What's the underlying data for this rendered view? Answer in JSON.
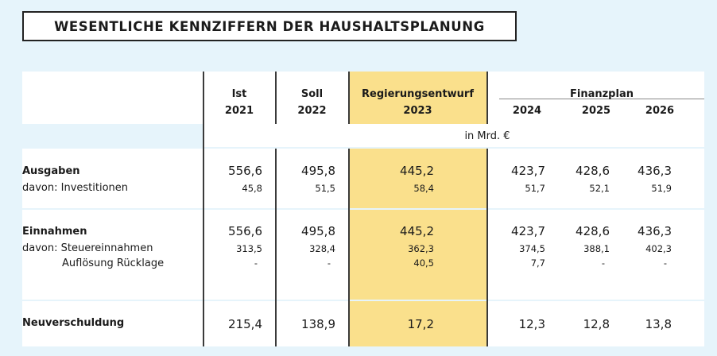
{
  "title": "WESENTLICHE KENNZIFFERN DER HAUSHALTSPLANUNG",
  "header": {
    "ist": [
      "Ist",
      "2021"
    ],
    "soll": [
      "Soll",
      "2022"
    ],
    "entwurf": [
      "Regierungsentwurf",
      "2023"
    ],
    "finanzplan": "Finanzplan",
    "years": [
      "2024",
      "2025",
      "2026"
    ]
  },
  "unit": "in Mrd. €",
  "rows": {
    "ausgaben": {
      "label": "Ausgaben",
      "sub_label": "davon: Investitionen",
      "values": [
        "556,6",
        "495,8",
        "445,2",
        "423,7",
        "428,6",
        "436,3"
      ],
      "sub_values": [
        "45,8",
        "51,5",
        "58,4",
        "51,7",
        "52,1",
        "51,9"
      ]
    },
    "einnahmen": {
      "label": "Einnahmen",
      "sub_label_1": "davon: Steuereinnahmen",
      "sub_label_2": "Auflösung Rücklage",
      "values": [
        "556,6",
        "495,8",
        "445,2",
        "423,7",
        "428,6",
        "436,3"
      ],
      "sub_values_1": [
        "313,5",
        "328,4",
        "362,3",
        "374,5",
        "388,1",
        "402,3"
      ],
      "sub_values_2": [
        "-",
        "-",
        "40,5",
        "7,7",
        "-",
        "-"
      ]
    },
    "neuverschuldung": {
      "label": "Neuverschuldung",
      "values": [
        "215,4",
        "138,9",
        "17,2",
        "12,3",
        "12,8",
        "13,8"
      ]
    }
  },
  "colors": {
    "background": "#e6f4fb",
    "highlight": "#fae08c",
    "table": "#ffffff",
    "rule": "#3a3a3a"
  }
}
